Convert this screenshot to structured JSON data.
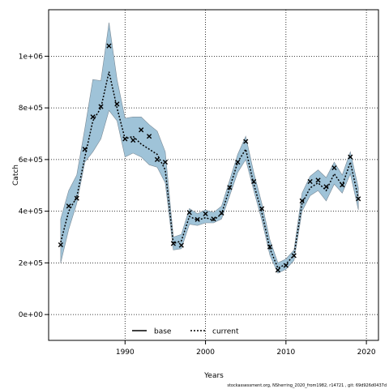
{
  "chart_data": {
    "type": "line",
    "title": "",
    "xlabel": "Years",
    "ylabel": "Catch",
    "xlim": [
      1980.5,
      2021.5
    ],
    "ylim": [
      -100000,
      1180000
    ],
    "x_ticks": [
      1990,
      2000,
      2010,
      2020
    ],
    "y_ticks": [
      0,
      200000,
      400000,
      600000,
      800000,
      1000000
    ],
    "y_tick_labels": [
      "0e+00",
      "2e+05",
      "4e+05",
      "6e+05",
      "8e+05",
      "1e+06"
    ],
    "grid": true,
    "legend_position": "bottom-center",
    "legend": [
      {
        "name": "base",
        "style": "solid",
        "color": "#000000"
      },
      {
        "name": "current",
        "style": "dotted",
        "color": "#000000"
      }
    ],
    "band_color": "#9fc3d8",
    "band_edge_color": "#7a8a96",
    "x": [
      1982,
      1983,
      1984,
      1985,
      1986,
      1987,
      1988,
      1989,
      1990,
      1991,
      1992,
      1993,
      1994,
      1995,
      1996,
      1997,
      1998,
      1999,
      2000,
      2001,
      2002,
      2003,
      2004,
      2005,
      2006,
      2007,
      2008,
      2009,
      2010,
      2011,
      2012,
      2013,
      2014,
      2015,
      2016,
      2017,
      2018,
      2019
    ],
    "observed": [
      270000,
      420000,
      450000,
      640000,
      765000,
      805000,
      1040000,
      815000,
      680000,
      675000,
      715000,
      690000,
      600000,
      590000,
      275000,
      268000,
      395000,
      368000,
      390000,
      370000,
      393000,
      492000,
      590000,
      670000,
      515000,
      410000,
      262000,
      172000,
      190000,
      228000,
      440000,
      515000,
      520000,
      495000,
      568000,
      502000,
      610000,
      448000
    ],
    "series": [
      {
        "name": "current",
        "values": [
          280000,
          400000,
          455000,
          610000,
          750000,
          800000,
          940000,
          800000,
          680000,
          690000,
          660000,
          640000,
          620000,
          560000,
          275000,
          285000,
          380000,
          365000,
          375000,
          365000,
          390000,
          490000,
          590000,
          640000,
          505000,
          395000,
          255000,
          180000,
          195000,
          230000,
          430000,
          490000,
          510000,
          480000,
          545000,
          500000,
          590000,
          450000
        ]
      }
    ],
    "band": {
      "lower": [
        200000,
        330000,
        430000,
        590000,
        630000,
        680000,
        790000,
        750000,
        610000,
        625000,
        610000,
        580000,
        570000,
        510000,
        250000,
        255000,
        350000,
        345000,
        355000,
        355000,
        370000,
        460000,
        550000,
        600000,
        480000,
        365000,
        230000,
        160000,
        175000,
        210000,
        400000,
        460000,
        480000,
        440000,
        505000,
        470000,
        545000,
        405000
      ],
      "upper": [
        370000,
        480000,
        540000,
        720000,
        910000,
        905000,
        1130000,
        910000,
        760000,
        765000,
        765000,
        735000,
        710000,
        630000,
        300000,
        310000,
        410000,
        390000,
        405000,
        395000,
        420000,
        520000,
        620000,
        690000,
        550000,
        430000,
        290000,
        200000,
        215000,
        250000,
        470000,
        535000,
        560000,
        530000,
        590000,
        540000,
        630000,
        490000
      ]
    },
    "footnote": "stockassessment.org, NSherring_2020_from1982, r14721 , git: 69d926d0437d"
  }
}
